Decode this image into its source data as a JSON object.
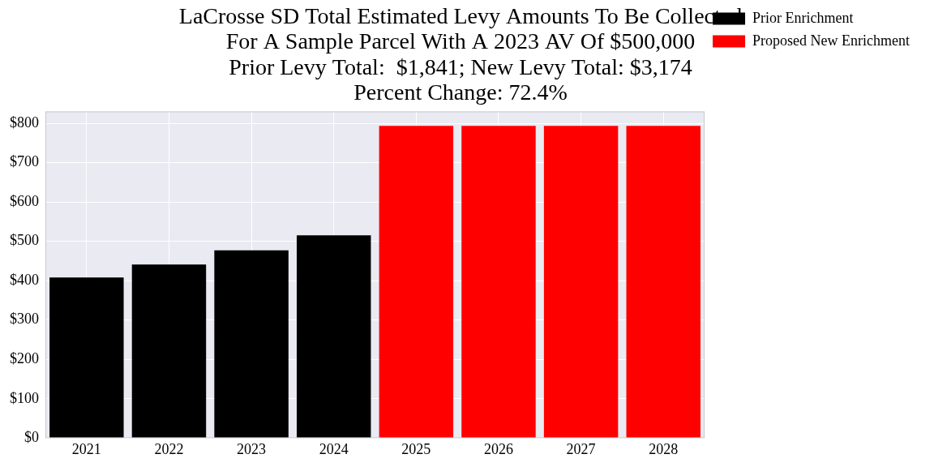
{
  "chart_data": {
    "type": "bar",
    "title": [
      "LaCrosse SD Total Estimated Levy Amounts To Be Collected",
      "For A Sample Parcel With A 2023 AV Of $500,000",
      "Prior Levy Total:  $1,841; New Levy Total: $3,174",
      "Percent Change: 72.4%"
    ],
    "categories": [
      "2021",
      "2022",
      "2023",
      "2024",
      "2025",
      "2026",
      "2027",
      "2028"
    ],
    "series": [
      {
        "name": "Prior Enrichment",
        "color": "#000000",
        "values": [
          408,
          441,
          477,
          515,
          null,
          null,
          null,
          null
        ]
      },
      {
        "name": "Proposed New Enrichment",
        "color": "#ff0000",
        "values": [
          null,
          null,
          null,
          null,
          793.5,
          793.5,
          793.5,
          793.5
        ]
      }
    ],
    "ylim": [
      0,
      830
    ],
    "yticks": [
      {
        "value": 0,
        "label": "$0"
      },
      {
        "value": 100,
        "label": "$100"
      },
      {
        "value": 200,
        "label": "$200"
      },
      {
        "value": 300,
        "label": "$300"
      },
      {
        "value": 400,
        "label": "$400"
      },
      {
        "value": 500,
        "label": "$500"
      },
      {
        "value": 600,
        "label": "$600"
      },
      {
        "value": 700,
        "label": "$700"
      },
      {
        "value": 800,
        "label": "$800"
      }
    ],
    "grid": true,
    "legend": "upper right"
  }
}
